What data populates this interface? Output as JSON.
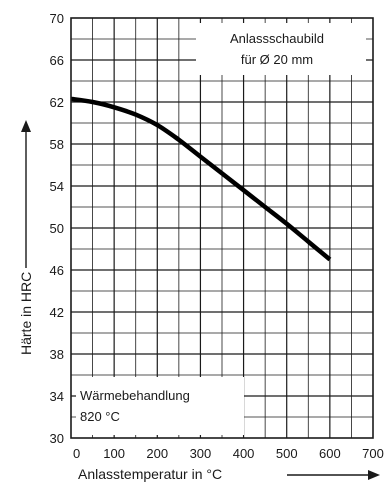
{
  "chart_data": {
    "type": "line",
    "title": "Anlassschaubild",
    "subtitle": "für Ø 20 mm",
    "annotation_lines": [
      "Wärmebehandlung",
      "820 °C"
    ],
    "xlabel": "Anlasstemperatur in °C",
    "ylabel": "Härte in HRC",
    "xlim": [
      0,
      700
    ],
    "ylim": [
      30,
      70
    ],
    "xticks": [
      0,
      100,
      200,
      300,
      400,
      500,
      600,
      700
    ],
    "yticks": [
      30,
      34,
      38,
      42,
      46,
      50,
      54,
      58,
      62,
      66,
      70
    ],
    "grid": true,
    "x": [
      0,
      50,
      100,
      150,
      200,
      250,
      300,
      350,
      400,
      450,
      500,
      550,
      600
    ],
    "y": [
      62.3,
      62.0,
      61.5,
      60.8,
      59.8,
      58.4,
      56.8,
      55.2,
      53.6,
      52.0,
      50.4,
      48.7,
      47.0
    ]
  }
}
